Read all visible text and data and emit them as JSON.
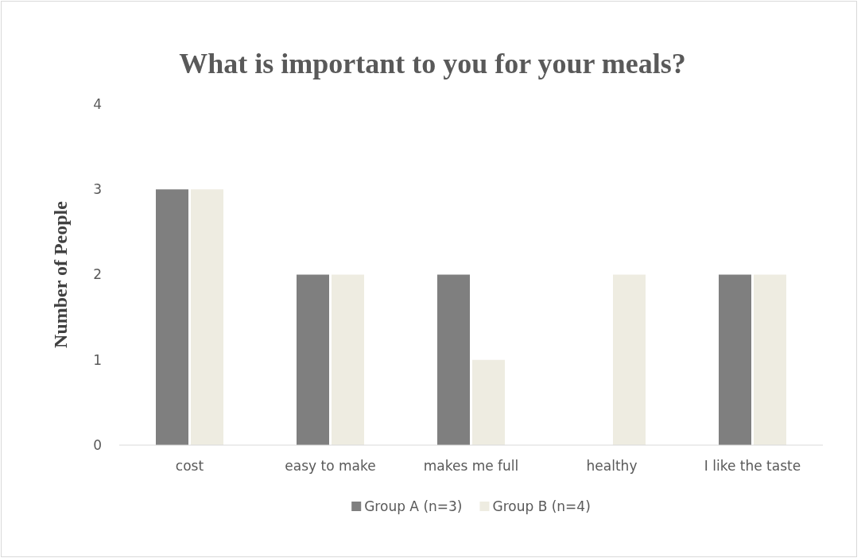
{
  "chart_data": {
    "type": "bar",
    "title": "What is important to you for your meals?",
    "ylabel": "Number of People",
    "categories": [
      "cost",
      "easy to make",
      "makes me full",
      "healthy",
      "I like the taste"
    ],
    "series": [
      {
        "name": "Group A (n=3)",
        "color": "#7f7f7f",
        "values": [
          3,
          2,
          2,
          0,
          2
        ]
      },
      {
        "name": "Group B (n=4)",
        "color": "#eeece1",
        "values": [
          3,
          2,
          1,
          2,
          2
        ]
      }
    ],
    "ylim": [
      0,
      4
    ],
    "yticks": [
      0,
      1,
      2,
      3,
      4
    ],
    "grid": false,
    "legend": "bottom"
  }
}
